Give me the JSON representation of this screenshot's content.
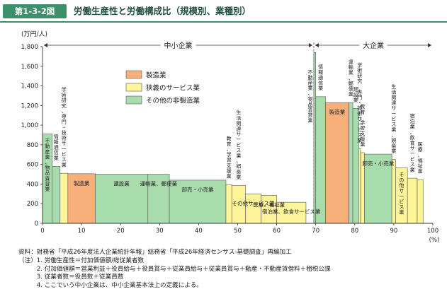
{
  "header": {
    "figure_number": "第1-3-2図",
    "title": "労働生産性と労働構成比（規模別、業種別）"
  },
  "chart_data": {
    "type": "bar",
    "subtype": "variable-width",
    "ylabel": "(万円/人)",
    "xlabel": "(%)",
    "ylim": [
      0,
      1800
    ],
    "xlim": [
      0,
      100
    ],
    "y_ticks": [
      0,
      200,
      400,
      600,
      800,
      1000,
      1200,
      1400,
      1600,
      1800
    ],
    "x_ticks": [
      0,
      10,
      20,
      30,
      40,
      50,
      60,
      70,
      80,
      90,
      100
    ],
    "grid": false,
    "legend": {
      "placement": "top-center",
      "entries": [
        {
          "key": "manufacturing",
          "label": "製造業",
          "color": "#f7b07a"
        },
        {
          "key": "service",
          "label": "狭義のサービス業",
          "color": "#fef59a"
        },
        {
          "key": "other",
          "label": "その他の非製造業",
          "color": "#a9dcad"
        }
      ]
    },
    "groups": [
      {
        "label": "中小企業",
        "x_start": 0,
        "x_end": 69.5
      },
      {
        "label": "大企業",
        "x_start": 69.5,
        "x_end": 100
      }
    ],
    "bars": [
      {
        "label": "不動産業、物品賃貸業",
        "x_start": 0.0,
        "x_end": 2.5,
        "value": 910,
        "category": "other"
      },
      {
        "label": "情報通信業",
        "x_start": 2.5,
        "x_end": 4.5,
        "value": 580,
        "category": "other"
      },
      {
        "label": "学術研究、専門・技術サービス業",
        "x_start": 4.5,
        "x_end": 6.5,
        "value": 510,
        "category": "service"
      },
      {
        "label": "製造業",
        "x_start": 6.5,
        "x_end": 13.5,
        "value": 505,
        "category": "manufacturing"
      },
      {
        "label": "建設業",
        "x_start": 13.5,
        "x_end": 27.0,
        "value": 500,
        "category": "other"
      },
      {
        "label": "運輸業、郵便業",
        "x_start": 27.0,
        "x_end": 32.5,
        "value": 500,
        "category": "other"
      },
      {
        "label": "卸売・小売業",
        "x_start": 32.5,
        "x_end": 47.0,
        "value": 440,
        "category": "other"
      },
      {
        "label": "教育、学習支援業",
        "x_start": 47.0,
        "x_end": 48.5,
        "value": 395,
        "category": "service"
      },
      {
        "label": "生活関連サービス業、娯楽業",
        "x_start": 48.5,
        "x_end": 52.0,
        "value": 385,
        "category": "service"
      },
      {
        "label": "その他サービス業",
        "x_start": 52.0,
        "x_end": 56.0,
        "value": 300,
        "category": "service"
      },
      {
        "label": "医療、福祉業",
        "x_start": 56.0,
        "x_end": 60.0,
        "value": 285,
        "category": "service"
      },
      {
        "label": "宿泊業、飲食サービス業",
        "x_start": 60.0,
        "x_end": 67.5,
        "value": 215,
        "category": "service"
      },
      {
        "label": "不動産業、物品賃貸業",
        "x_start": 69.5,
        "x_end": 70.0,
        "value": 1740,
        "category": "other"
      },
      {
        "label": "情報通信業",
        "x_start": 70.0,
        "x_end": 72.5,
        "value": 1290,
        "category": "other"
      },
      {
        "label": "製造業",
        "x_start": 72.5,
        "x_end": 78.5,
        "value": 1230,
        "category": "manufacturing"
      },
      {
        "label": "運輸業、郵便業",
        "x_start": 78.5,
        "x_end": 79.5,
        "value": 1230,
        "category": "other"
      },
      {
        "label": "建設業",
        "x_start": 79.5,
        "x_end": 81.0,
        "value": 1170,
        "category": "other"
      },
      {
        "label": "学術研究、専門・技術サービス業",
        "x_start": 81.0,
        "x_end": 81.5,
        "value": 760,
        "category": "service"
      },
      {
        "label": "教育、学習支援業",
        "x_start": 81.5,
        "x_end": 82.5,
        "value": 720,
        "category": "service"
      },
      {
        "label": "卸売・小売業",
        "x_start": 82.5,
        "x_end": 89.5,
        "value": 705,
        "category": "other"
      },
      {
        "label": "生活関連サービス業、娯楽業",
        "x_start": 89.5,
        "x_end": 90.5,
        "value": 650,
        "category": "service"
      },
      {
        "label": "その他サービス業",
        "x_start": 90.5,
        "x_end": 93.5,
        "value": 565,
        "category": "service"
      },
      {
        "label": "宿泊業、飲食サービス業",
        "x_start": 93.5,
        "x_end": 96.0,
        "value": 460,
        "category": "service"
      },
      {
        "label": "医療、福祉業",
        "x_start": 96.0,
        "x_end": 97.5,
        "value": 445,
        "category": "service"
      }
    ],
    "bar_labels": [
      {
        "bar": 0,
        "text": "不動産業、物品賃貸業",
        "pos": "inside",
        "vertical": true
      },
      {
        "bar": 1,
        "text": "情報通信業",
        "pos": "above",
        "vertical": true
      },
      {
        "bar": 2,
        "text": "学術研究、専門・技術サービス業",
        "pos": "above",
        "vertical": true
      },
      {
        "bar": 3,
        "text": "製造業",
        "pos": "inside",
        "vertical": false
      },
      {
        "bar": 4,
        "text": "建設業",
        "pos": "inside",
        "vertical": false
      },
      {
        "bar": 5,
        "text": "運輸業、郵便業",
        "pos": "inside",
        "vertical": false
      },
      {
        "bar": 6,
        "text": "卸売・小売業",
        "pos": "inside",
        "vertical": false
      },
      {
        "bar": 7,
        "text": "教育、学習支援業",
        "pos": "above",
        "vertical": true
      },
      {
        "bar": 8,
        "text": "生活関連サービス業、娯楽業",
        "pos": "above",
        "vertical": true
      },
      {
        "bar": 9,
        "text": "その他サービス業",
        "pos": "inside",
        "vertical": false
      },
      {
        "bar": 10,
        "text": "医療、福祉業",
        "pos": "inside",
        "vertical": false
      },
      {
        "bar": 11,
        "text": "宿泊業、飲食サービス業",
        "pos": "inside",
        "vertical": false
      },
      {
        "bar": 12,
        "text": "不動産業、物品賃貸業",
        "pos": "left",
        "vertical": true
      },
      {
        "bar": 13,
        "text": "情報通信業",
        "pos": "above",
        "vertical": true
      },
      {
        "bar": 14,
        "text": "製造業",
        "pos": "inside",
        "vertical": false
      },
      {
        "bar": 15,
        "text": "運輸業、郵便業",
        "pos": "above",
        "vertical": true
      },
      {
        "bar": 16,
        "text": "建設業",
        "pos": "above",
        "vertical": true
      },
      {
        "bar": 17,
        "text": "学術研究、専門・技術サービス業",
        "pos": "above",
        "vertical": true
      },
      {
        "bar": 18,
        "text": "教育、学習支援業",
        "pos": "above",
        "vertical": true
      },
      {
        "bar": 19,
        "text": "卸売・小売業",
        "pos": "inside",
        "vertical": false
      },
      {
        "bar": 20,
        "text": "生活関連サービス業、娯楽業",
        "pos": "above",
        "vertical": true
      },
      {
        "bar": 21,
        "text": "その他サービス業",
        "pos": "inside",
        "vertical": true
      },
      {
        "bar": 22,
        "text": "宿泊業、飲食サービス業",
        "pos": "above",
        "vertical": true
      },
      {
        "bar": 23,
        "text": "医療、福祉業",
        "pos": "above",
        "vertical": true
      }
    ]
  },
  "notes": [
    "資料：財務省「平成26年度法人企業統計年報」総務省「平成26年経済センサス-基礎調査」再編加工",
    "（注）1. 労働生産性＝付加価値額/総従業者数",
    "　　　2. 付加価値額＝営業利益＋役員給与＋役員賞与＋従業員給与＋従業員賞与＋動産・不動産賃借料＋租税公課",
    "　　　3. 従業者数＝役員数＋従業員数",
    "　　　4. ここでいう中小企業は、中小企業基本法上の定義による。"
  ]
}
